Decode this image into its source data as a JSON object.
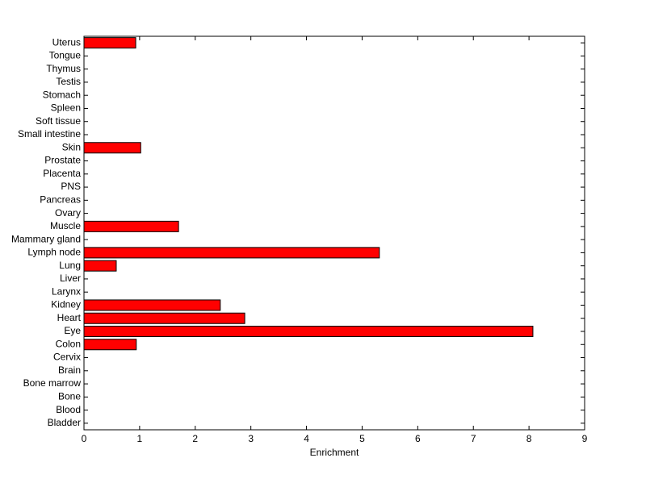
{
  "chart_data": {
    "type": "barh",
    "xlabel": "Enrichment",
    "categories": [
      "Bladder",
      "Blood",
      "Bone",
      "Bone marrow",
      "Brain",
      "Cervix",
      "Colon",
      "Eye",
      "Heart",
      "Kidney",
      "Larynx",
      "Liver",
      "Lung",
      "Lymph node",
      "Mammary gland",
      "Muscle",
      "Ovary",
      "Pancreas",
      "PNS",
      "Placenta",
      "Prostate",
      "Skin",
      "Small intestine",
      "Soft tissue",
      "Spleen",
      "Stomach",
      "Testis",
      "Thymus",
      "Tongue",
      "Uterus"
    ],
    "values": [
      0,
      0,
      0,
      0,
      0,
      0,
      0.94,
      8.07,
      2.89,
      2.45,
      0,
      0,
      0.58,
      5.31,
      0,
      1.7,
      0,
      0,
      0,
      0,
      0,
      1.02,
      0,
      0,
      0,
      0,
      0,
      0,
      0,
      0.93
    ],
    "color": "#ff0000",
    "xlim": [
      0,
      9
    ],
    "xticks": [
      0,
      1,
      2,
      3,
      4,
      5,
      6,
      7,
      8,
      9
    ]
  }
}
